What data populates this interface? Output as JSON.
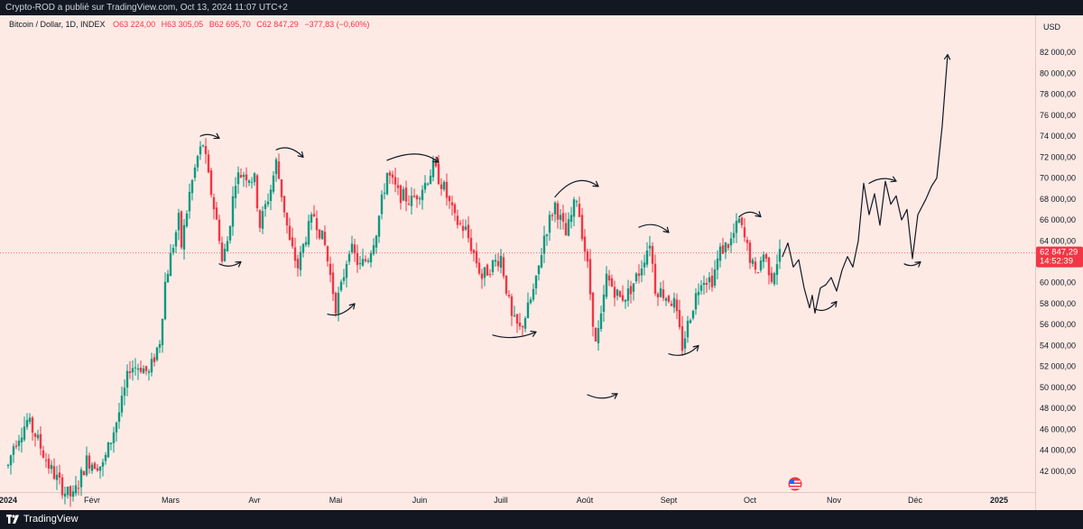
{
  "publisher_line": "Crypto-ROD a publié sur TradingView.com, Oct 13, 2024 11:07 UTC+2",
  "footer": {
    "brand": "TradingView"
  },
  "chart_data": {
    "type": "candlestick",
    "symbol": "Bitcoin / Dollar, 1D, INDEX",
    "ohlc": {
      "open": "O63 224,00",
      "high": "H63 305,05",
      "low": "B62 695,70",
      "close": "C62 847,29",
      "change": "−377,83 (−0,60%)"
    },
    "currency": "USD",
    "y_ticks": [
      "82 000,00",
      "80 000,00",
      "78 000,00",
      "76 000,00",
      "74 000,00",
      "72 000,00",
      "70 000,00",
      "68 000,00",
      "66 000,00",
      "64 000,00",
      "60 000,00",
      "58 000,00",
      "56 000,00",
      "54 000,00",
      "52 000,00",
      "50 000,00",
      "48 000,00",
      "46 000,00",
      "44 000,00",
      "42 000,00"
    ],
    "y_tick_values": [
      82000,
      80000,
      78000,
      76000,
      74000,
      72000,
      70000,
      68000,
      66000,
      64000,
      60000,
      58000,
      56000,
      54000,
      52000,
      50000,
      48000,
      46000,
      44000,
      42000
    ],
    "ylim": [
      40000,
      84000
    ],
    "last_price": {
      "value": 62847.29,
      "label": "62 847,29",
      "countdown": "14:52:39"
    },
    "x_ticks": [
      {
        "label": "2024",
        "date": "2024-01-01",
        "bold": true
      },
      {
        "label": "Févr",
        "date": "2024-02-01"
      },
      {
        "label": "Mars",
        "date": "2024-03-01"
      },
      {
        "label": "Avr",
        "date": "2024-04-01"
      },
      {
        "label": "Mai",
        "date": "2024-05-01"
      },
      {
        "label": "Juin",
        "date": "2024-06-01"
      },
      {
        "label": "Juill",
        "date": "2024-07-01"
      },
      {
        "label": "Août",
        "date": "2024-08-01"
      },
      {
        "label": "Sept",
        "date": "2024-09-01"
      },
      {
        "label": "Oct",
        "date": "2024-10-01"
      },
      {
        "label": "Nov",
        "date": "2024-11-01"
      },
      {
        "label": "Déc",
        "date": "2024-12-01"
      },
      {
        "label": "2025",
        "date": "2025-01-01",
        "bold": true
      }
    ],
    "xlim": [
      "2023-12-29",
      "2025-01-12"
    ],
    "price_path": [
      [
        "2024-01-01",
        42500
      ],
      [
        "2024-01-03",
        44500
      ],
      [
        "2024-01-08",
        46800
      ],
      [
        "2024-01-11",
        45500
      ],
      [
        "2024-01-16",
        42500
      ],
      [
        "2024-01-22",
        40000
      ],
      [
        "2024-01-25",
        39500
      ],
      [
        "2024-01-30",
        43000
      ],
      [
        "2024-02-05",
        42500
      ],
      [
        "2024-02-08",
        45000
      ],
      [
        "2024-02-12",
        48500
      ],
      [
        "2024-02-15",
        52000
      ],
      [
        "2024-02-19",
        52000
      ],
      [
        "2024-02-22",
        51300
      ],
      [
        "2024-02-26",
        54500
      ],
      [
        "2024-02-28",
        60000
      ],
      [
        "2024-03-01",
        62500
      ],
      [
        "2024-03-04",
        66000
      ],
      [
        "2024-03-05",
        63500
      ],
      [
        "2024-03-08",
        68500
      ],
      [
        "2024-03-11",
        72000
      ],
      [
        "2024-03-13",
        73300
      ],
      [
        "2024-03-15",
        70000
      ],
      [
        "2024-03-19",
        64500
      ],
      [
        "2024-03-20",
        62000
      ],
      [
        "2024-03-22",
        64000
      ],
      [
        "2024-03-25",
        70000
      ],
      [
        "2024-03-28",
        70500
      ],
      [
        "2024-04-01",
        69800
      ],
      [
        "2024-04-03",
        65500
      ],
      [
        "2024-04-07",
        69000
      ],
      [
        "2024-04-09",
        71500
      ],
      [
        "2024-04-12",
        67000
      ],
      [
        "2024-04-14",
        63800
      ],
      [
        "2024-04-17",
        61500
      ],
      [
        "2024-04-20",
        64500
      ],
      [
        "2024-04-23",
        66500
      ],
      [
        "2024-04-27",
        63500
      ],
      [
        "2024-05-01",
        57800
      ],
      [
        "2024-05-03",
        59500
      ],
      [
        "2024-05-06",
        63500
      ],
      [
        "2024-05-10",
        61500
      ],
      [
        "2024-05-13",
        62500
      ],
      [
        "2024-05-16",
        65000
      ],
      [
        "2024-05-20",
        70500
      ],
      [
        "2024-05-24",
        68500
      ],
      [
        "2024-05-29",
        67800
      ],
      [
        "2024-06-03",
        69500
      ],
      [
        "2024-06-06",
        71100
      ],
      [
        "2024-06-10",
        69000
      ],
      [
        "2024-06-14",
        66000
      ],
      [
        "2024-06-18",
        65000
      ],
      [
        "2024-06-24",
        60500
      ],
      [
        "2024-06-27",
        61500
      ],
      [
        "2024-07-01",
        62500
      ],
      [
        "2024-07-03",
        59500
      ],
      [
        "2024-07-05",
        56500
      ],
      [
        "2024-07-08",
        55500
      ],
      [
        "2024-07-11",
        57500
      ],
      [
        "2024-07-14",
        60000
      ],
      [
        "2024-07-17",
        64500
      ],
      [
        "2024-07-21",
        67500
      ],
      [
        "2024-07-25",
        64500
      ],
      [
        "2024-07-29",
        68200
      ],
      [
        "2024-08-02",
        61500
      ],
      [
        "2024-08-05",
        54000
      ],
      [
        "2024-08-07",
        56500
      ],
      [
        "2024-08-09",
        60500
      ],
      [
        "2024-08-14",
        58500
      ],
      [
        "2024-08-17",
        59000
      ],
      [
        "2024-08-21",
        61000
      ],
      [
        "2024-08-25",
        64000
      ],
      [
        "2024-08-27",
        59500
      ],
      [
        "2024-08-30",
        59000
      ],
      [
        "2024-09-03",
        58000
      ],
      [
        "2024-09-06",
        53900
      ],
      [
        "2024-09-09",
        57000
      ],
      [
        "2024-09-13",
        60500
      ],
      [
        "2024-09-17",
        60300
      ],
      [
        "2024-09-20",
        63000
      ],
      [
        "2024-09-24",
        64000
      ],
      [
        "2024-09-27",
        65900
      ],
      [
        "2024-09-30",
        63300
      ],
      [
        "2024-10-03",
        60700
      ],
      [
        "2024-10-06",
        62800
      ],
      [
        "2024-10-09",
        60600
      ],
      [
        "2024-10-12",
        62850
      ]
    ],
    "annotations": {
      "curved_arrows": [
        {
          "kind": "top",
          "points": [
            [
              "2024-03-12",
              74000
            ],
            [
              "2024-03-15",
              74400
            ],
            [
              "2024-03-19",
              73800
            ]
          ]
        },
        {
          "kind": "bottom",
          "points": [
            [
              "2024-03-19",
              61800
            ],
            [
              "2024-03-23",
              61300
            ],
            [
              "2024-03-27",
              62000
            ]
          ]
        },
        {
          "kind": "top",
          "points": [
            [
              "2024-04-09",
              72700
            ],
            [
              "2024-04-14",
              73300
            ],
            [
              "2024-04-19",
              72000
            ]
          ]
        },
        {
          "kind": "bottom",
          "points": [
            [
              "2024-04-28",
              57000
            ],
            [
              "2024-05-03",
              56600
            ],
            [
              "2024-05-08",
              58000
            ]
          ]
        },
        {
          "kind": "top",
          "points": [
            [
              "2024-05-20",
              71700
            ],
            [
              "2024-06-01",
              73000
            ],
            [
              "2024-06-08",
              71500
            ]
          ]
        },
        {
          "kind": "bottom",
          "points": [
            [
              "2024-06-28",
              55000
            ],
            [
              "2024-07-06",
              54400
            ],
            [
              "2024-07-14",
              55300
            ]
          ]
        },
        {
          "kind": "top",
          "points": [
            [
              "2024-07-21",
              68200
            ],
            [
              "2024-07-29",
              70700
            ],
            [
              "2024-08-06",
              69200
            ]
          ]
        },
        {
          "kind": "bottom",
          "points": [
            [
              "2024-08-02",
              49300
            ],
            [
              "2024-08-08",
              48600
            ],
            [
              "2024-08-13",
              49400
            ]
          ]
        },
        {
          "kind": "top",
          "points": [
            [
              "2024-08-21",
              65300
            ],
            [
              "2024-08-27",
              66000
            ],
            [
              "2024-09-01",
              64800
            ]
          ]
        },
        {
          "kind": "bottom",
          "points": [
            [
              "2024-09-01",
              53200
            ],
            [
              "2024-09-07",
              52700
            ],
            [
              "2024-09-12",
              54000
            ]
          ]
        },
        {
          "kind": "top",
          "points": [
            [
              "2024-09-27",
              66300
            ],
            [
              "2024-10-01",
              67200
            ],
            [
              "2024-10-05",
              66300
            ]
          ]
        },
        {
          "kind": "bottom",
          "points": [
            [
              "2024-10-25",
              57500
            ],
            [
              "2024-10-29",
              57000
            ],
            [
              "2024-11-02",
              58200
            ]
          ]
        },
        {
          "kind": "top",
          "points": [
            [
              "2024-11-14",
              69500
            ],
            [
              "2024-11-19",
              70300
            ],
            [
              "2024-11-24",
              69700
            ]
          ]
        },
        {
          "kind": "bottom",
          "points": [
            [
              "2024-11-27",
              61800
            ],
            [
              "2024-11-30",
              61400
            ],
            [
              "2024-12-03",
              62000
            ]
          ]
        }
      ],
      "projection_path": [
        [
          "2024-10-13",
          62500
        ],
        [
          "2024-10-15",
          63800
        ],
        [
          "2024-10-17",
          61500
        ],
        [
          "2024-10-19",
          62200
        ],
        [
          "2024-10-21",
          59500
        ],
        [
          "2024-10-23",
          57600
        ],
        [
          "2024-10-24",
          58800
        ],
        [
          "2024-10-25",
          57100
        ],
        [
          "2024-10-27",
          59500
        ],
        [
          "2024-10-29",
          59800
        ],
        [
          "2024-10-31",
          60500
        ],
        [
          "2024-11-02",
          59200
        ],
        [
          "2024-11-04",
          61200
        ],
        [
          "2024-11-06",
          62500
        ],
        [
          "2024-11-08",
          61500
        ],
        [
          "2024-11-10",
          64000
        ],
        [
          "2024-11-12",
          69500
        ],
        [
          "2024-11-14",
          66500
        ],
        [
          "2024-11-16",
          68500
        ],
        [
          "2024-11-18",
          65500
        ],
        [
          "2024-11-20",
          69700
        ],
        [
          "2024-11-22",
          67500
        ],
        [
          "2024-11-24",
          68300
        ],
        [
          "2024-11-26",
          66000
        ],
        [
          "2024-11-28",
          67000
        ],
        [
          "2024-11-30",
          62300
        ],
        [
          "2024-12-02",
          66500
        ],
        [
          "2024-12-05",
          68000
        ],
        [
          "2024-12-07",
          69200
        ],
        [
          "2024-12-09",
          70000
        ],
        [
          "2024-12-11",
          75000
        ],
        [
          "2024-12-13",
          81800
        ]
      ]
    }
  }
}
